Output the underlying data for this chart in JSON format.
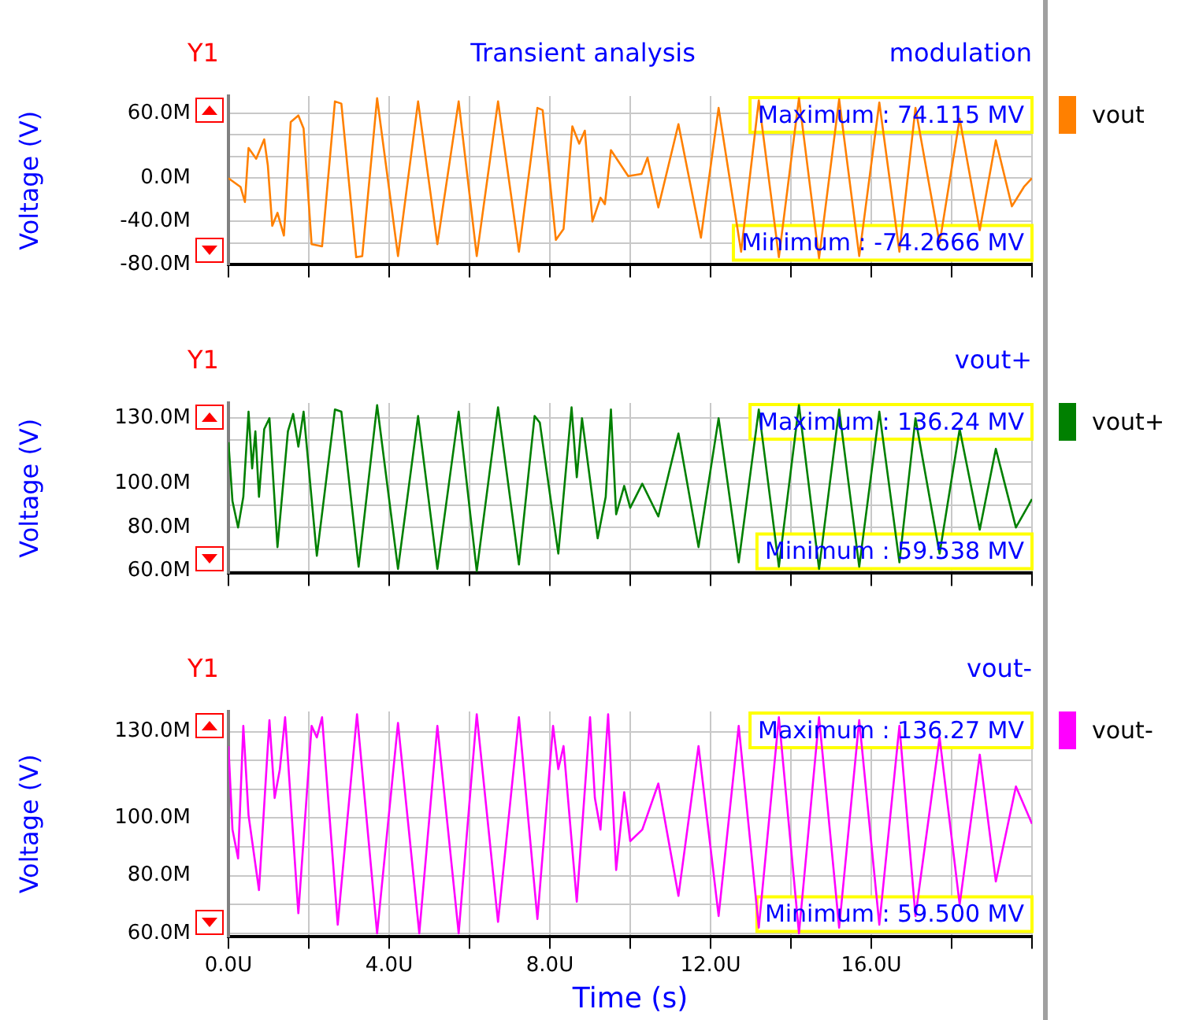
{
  "chart_data": [
    {
      "type": "line",
      "title": "Transient analysis",
      "subtitle": "modulation",
      "ylabel": "Voltage (V)",
      "annotations": [
        "Y1",
        "Maximum : 74.115 MV",
        "Minimum : -74.2666 MV"
      ],
      "series": [
        {
          "name": "vout",
          "color": "#ff8000",
          "x": [
            0,
            0.3,
            0.41,
            0.5,
            0.69,
            0.89,
            0.98,
            1.09,
            1.22,
            1.38,
            1.55,
            1.74,
            1.87,
            2.07,
            2.33,
            2.65,
            2.81,
            3.18,
            3.33,
            3.7,
            4.22,
            4.72,
            5.2,
            5.73,
            6.18,
            6.71,
            7.23,
            7.69,
            7.82,
            8.15,
            8.34,
            8.56,
            8.73,
            8.87,
            9.06,
            9.26,
            9.37,
            9.52,
            9.95,
            10.28,
            10.43,
            10.7,
            11.2,
            11.76,
            12.2,
            12.76,
            13.2,
            13.7,
            14.2,
            14.7,
            15.2,
            15.7,
            16.2,
            16.7,
            17.1,
            17.7,
            18.2,
            18.7,
            19.1,
            19.5,
            19.8,
            20
          ],
          "values": [
            0,
            -8,
            -22,
            28,
            18,
            36,
            12,
            -44,
            -32,
            -53,
            52,
            58,
            46,
            -61,
            -63,
            71,
            69,
            -73,
            -72,
            74,
            -72,
            71,
            -61,
            71,
            -72,
            71,
            -68,
            65,
            63,
            -57,
            -47,
            48,
            32,
            44,
            -40,
            -18,
            -24,
            26,
            2,
            4,
            19,
            -27,
            50,
            -55,
            65,
            -68,
            72,
            -73,
            74,
            -74,
            73,
            -72,
            70,
            -68,
            65,
            -60,
            55,
            -48,
            35,
            -26,
            -8,
            0
          ]
        }
      ],
      "xlim": [
        0,
        20
      ],
      "xticks": [
        {
          "value": 0,
          "label": null
        },
        {
          "value": 2,
          "label": null
        },
        {
          "value": 4,
          "label": null
        },
        {
          "value": 6,
          "label": null
        },
        {
          "value": 8,
          "label": null
        },
        {
          "value": 10,
          "label": null
        },
        {
          "value": 12,
          "label": null
        },
        {
          "value": 14,
          "label": null
        },
        {
          "value": 16,
          "label": null
        },
        {
          "value": 18,
          "label": null
        },
        {
          "value": 20,
          "label": null
        }
      ],
      "ylim": [
        -80,
        76
      ],
      "yticks": [
        {
          "value": -80,
          "label": "-80.0M"
        },
        {
          "value": -60,
          "label": null
        },
        {
          "value": -40,
          "label": "-40.0M"
        },
        {
          "value": -20,
          "label": null
        },
        {
          "value": 0,
          "label": "0.0M"
        },
        {
          "value": 20,
          "label": null
        },
        {
          "value": 40,
          "label": null
        },
        {
          "value": 60,
          "label": "60.0M"
        }
      ],
      "grid": true,
      "legend": "right",
      "tick_labels": "y"
    },
    {
      "type": "line",
      "title": "vout+",
      "ylabel": "Voltage (V)",
      "annotations": [
        "Y1",
        "Maximum : 136.24 MV",
        "Minimum : 59.538 MV"
      ],
      "series": [
        {
          "name": "vout+",
          "color": "#008000",
          "x": [
            0,
            0.1,
            0.24,
            0.37,
            0.5,
            0.59,
            0.67,
            0.76,
            0.89,
            1.02,
            1.22,
            1.48,
            1.61,
            1.74,
            1.87,
            2.2,
            2.65,
            2.81,
            3.24,
            3.7,
            4.22,
            4.72,
            5.2,
            5.73,
            6.18,
            6.71,
            7.23,
            7.62,
            7.75,
            8.21,
            8.54,
            8.67,
            8.8,
            9.19,
            9.39,
            9.52,
            9.65,
            9.85,
            10.0,
            10.3,
            10.7,
            11.2,
            11.7,
            12.2,
            12.7,
            13.2,
            13.7,
            14.2,
            14.7,
            15.2,
            15.7,
            16.2,
            16.7,
            17.1,
            17.7,
            18.2,
            18.7,
            19.1,
            19.6,
            20
          ],
          "values": [
            119,
            92,
            80,
            94,
            133,
            107,
            124,
            94,
            125,
            130,
            71,
            124,
            132,
            117,
            133,
            67,
            134,
            133,
            62,
            136,
            61,
            131,
            61,
            133,
            60,
            135,
            63,
            131,
            128,
            68,
            135,
            103,
            130,
            75,
            94,
            134,
            86,
            99,
            89,
            100,
            85,
            123,
            71,
            130,
            64,
            134,
            62,
            136,
            61,
            134,
            62,
            133,
            64,
            130,
            68,
            125,
            79,
            116,
            80,
            93
          ]
        }
      ],
      "xlim": [
        0,
        20
      ],
      "xticks": [
        {
          "value": 0,
          "label": null
        },
        {
          "value": 2,
          "label": null
        },
        {
          "value": 4,
          "label": null
        },
        {
          "value": 6,
          "label": null
        },
        {
          "value": 8,
          "label": null
        },
        {
          "value": 10,
          "label": null
        },
        {
          "value": 12,
          "label": null
        },
        {
          "value": 14,
          "label": null
        },
        {
          "value": 16,
          "label": null
        },
        {
          "value": 18,
          "label": null
        },
        {
          "value": 20,
          "label": null
        }
      ],
      "ylim": [
        59,
        137
      ],
      "yticks": [
        {
          "value": 60,
          "label": "60.0M"
        },
        {
          "value": 70,
          "label": null
        },
        {
          "value": 80,
          "label": "80.0M"
        },
        {
          "value": 90,
          "label": null
        },
        {
          "value": 100,
          "label": "100.0M"
        },
        {
          "value": 110,
          "label": null
        },
        {
          "value": 120,
          "label": null
        },
        {
          "value": 130,
          "label": "130.0M"
        }
      ],
      "grid": true,
      "legend": "right",
      "tick_labels": "y"
    },
    {
      "type": "line",
      "title": "vout-",
      "xlabel": "Time (s)",
      "ylabel": "Voltage (V)",
      "annotations": [
        "Y1",
        "Maximum : 136.27 MV",
        "Minimum : 59.500 MV"
      ],
      "series": [
        {
          "name": "vout-",
          "color": "#ff00ff",
          "x": [
            0,
            0.1,
            0.24,
            0.37,
            0.5,
            0.76,
            1.02,
            1.15,
            1.28,
            1.41,
            1.74,
            2.07,
            2.2,
            2.33,
            2.72,
            3.2,
            3.7,
            4.22,
            4.75,
            5.2,
            5.73,
            6.18,
            6.71,
            7.23,
            7.69,
            8.08,
            8.21,
            8.34,
            8.67,
            9.0,
            9.12,
            9.26,
            9.45,
            9.65,
            9.85,
            10.0,
            10.3,
            10.7,
            11.2,
            11.7,
            12.2,
            12.7,
            13.2,
            13.7,
            14.2,
            14.7,
            15.2,
            15.7,
            16.2,
            16.7,
            17.1,
            17.7,
            18.2,
            18.7,
            19.1,
            19.6,
            20
          ],
          "values": [
            125,
            96,
            86,
            132,
            101,
            75,
            134,
            107,
            117,
            135,
            67,
            132,
            128,
            135,
            63,
            136,
            60,
            133,
            60,
            132,
            60,
            136,
            64,
            135,
            65,
            132,
            117,
            125,
            71,
            135,
            107,
            96,
            136,
            82,
            109,
            92,
            96,
            112,
            73,
            125,
            66,
            132,
            62,
            135,
            60,
            135,
            62,
            134,
            63,
            132,
            66,
            128,
            70,
            122,
            78,
            111,
            98
          ]
        }
      ],
      "xlim": [
        0,
        20
      ],
      "xticks": [
        {
          "value": 0,
          "label": "0.0U"
        },
        {
          "value": 2,
          "label": null
        },
        {
          "value": 4,
          "label": "4.0U"
        },
        {
          "value": 6,
          "label": null
        },
        {
          "value": 8,
          "label": "8.0U"
        },
        {
          "value": 10,
          "label": null
        },
        {
          "value": 12,
          "label": "12.0U"
        },
        {
          "value": 14,
          "label": null
        },
        {
          "value": 16,
          "label": "16.0U"
        },
        {
          "value": 18,
          "label": null
        },
        {
          "value": 20,
          "label": null
        }
      ],
      "ylim": [
        59,
        137
      ],
      "yticks": [
        {
          "value": 60,
          "label": "60.0M"
        },
        {
          "value": 70,
          "label": null
        },
        {
          "value": 80,
          "label": "80.0M"
        },
        {
          "value": 90,
          "label": null
        },
        {
          "value": 100,
          "label": "100.0M"
        },
        {
          "value": 110,
          "label": null
        },
        {
          "value": 120,
          "label": null
        },
        {
          "value": 130,
          "label": "130.0M"
        }
      ],
      "grid": true,
      "legend": "right"
    }
  ]
}
